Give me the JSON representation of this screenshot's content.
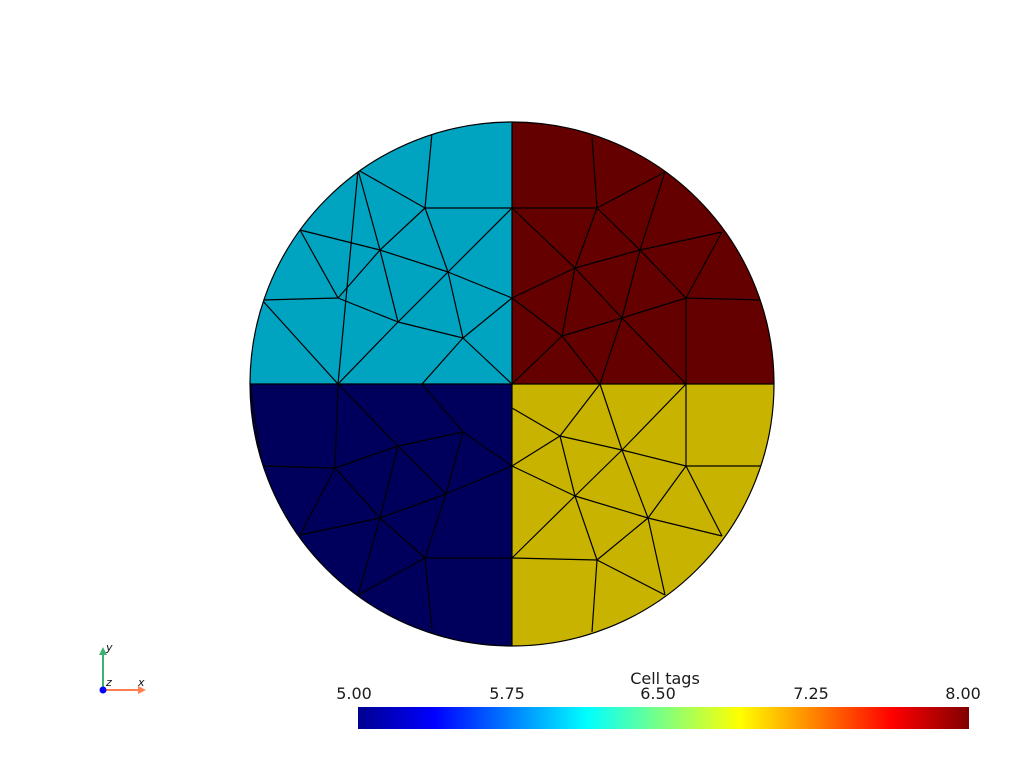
{
  "scene": {
    "regions": [
      {
        "id": "top-left",
        "tag": 6.0,
        "color": "#00a3c0"
      },
      {
        "id": "top-right",
        "tag": 8.0,
        "color": "#650000"
      },
      {
        "id": "bottom-left",
        "tag": 5.0,
        "color": "#00005c"
      },
      {
        "id": "bottom-right",
        "tag": 7.0,
        "color": "#c8b400"
      }
    ]
  },
  "colorbar": {
    "title": "Cell tags",
    "ticks": [
      "5.00",
      "5.75",
      "6.50",
      "7.25",
      "8.00"
    ],
    "range": [
      5.0,
      8.0
    ],
    "colormap": "jet",
    "colors": [
      "#00008f",
      "#0000ff",
      "#00ffff",
      "#ffff00",
      "#ff0000",
      "#800000"
    ]
  },
  "axes_widget": {
    "x_label": "x",
    "y_label": "y",
    "z_label": "z",
    "x_color": "#ff7f50",
    "y_color": "#3cb371",
    "z_color": "#0000ff"
  }
}
